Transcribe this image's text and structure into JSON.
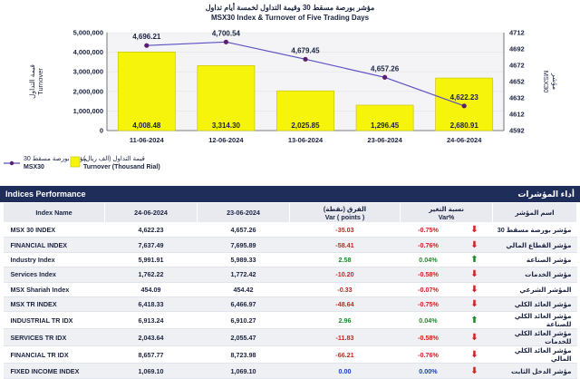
{
  "chart_data": {
    "type": "bar+line",
    "title_ar": "مؤشر بورصة مسقط 30 وقيمة التداول لخمسة أيام تداول",
    "title": "MSX30 Index & Turnover of Five Trading Days",
    "categories": [
      "11-06-2024",
      "12-06-2024",
      "13-06-2024",
      "23-06-2024",
      "24-06-2024"
    ],
    "series": [
      {
        "name": "Turnover (Thousand Rial)",
        "name_ar": "قيمة التداول (الف ريال)",
        "type": "bar",
        "axis": "left",
        "values": [
          4008.48,
          3314.3,
          2025.85,
          1296.45,
          2680.91
        ],
        "labels": [
          "4,008.48",
          "3,314.30",
          "2,025.85",
          "1,296.45",
          "2,680.91"
        ]
      },
      {
        "name": "MSX30",
        "name_ar": "مؤشر بورصة مسقط 30",
        "type": "line",
        "axis": "right",
        "values": [
          4696.21,
          4700.54,
          4679.45,
          4657.26,
          4622.23
        ],
        "labels": [
          "4,696.21",
          "4,700.54",
          "4,679.45",
          "4,657.26",
          "4,622.23"
        ]
      }
    ],
    "yleft": {
      "label": "Turnover",
      "label_ar": "قيمة التداول",
      "min": 0,
      "max": 5000000,
      "ticks": [
        "0",
        "1,000,000",
        "2,000,000",
        "3,000,000",
        "4,000,000",
        "5,000,000"
      ]
    },
    "yright": {
      "label": "MSX30",
      "label_ar": "مؤشر",
      "min": 4592,
      "max": 4712,
      "ticks": [
        "4592",
        "4612",
        "4632",
        "4652",
        "4672",
        "4692",
        "4712"
      ]
    },
    "colors": {
      "bar": "#f7f40c",
      "bar_edge": "#c9c400",
      "line": "#5a4fbf",
      "marker": "#5a1e6e"
    }
  },
  "legend": {
    "msx30_ar": "مؤشر بورصة مسقط 30",
    "msx30": "MSX30",
    "turnover_ar": "قيمة التداول (الف ريال)",
    "turnover": "Turnover (Thousand Rial)"
  },
  "table": {
    "title": "Indices Performance",
    "title_ar": "أداء المؤشرات",
    "headers": {
      "name": "Index Name",
      "d1": "24-06-2024",
      "d2": "23-06-2024",
      "var_ar": "الفرق (نقطة)",
      "var": "Var ( points )",
      "pct_ar": "نسبة التغير",
      "pct": "Var%",
      "name_ar": "اسم المؤشر"
    },
    "rows": [
      {
        "name": "MSX 30 INDEX",
        "d1": "4,622.23",
        "d2": "4,657.26",
        "var": "-35.03",
        "pct": "-0.75%",
        "dir": "down",
        "name_ar": "مؤشر بورصة مسقط 30"
      },
      {
        "name": "FINANCIAL INDEX",
        "d1": "7,637.49",
        "d2": "7,695.89",
        "var": "-58.41",
        "pct": "-0.76%",
        "dir": "down",
        "name_ar": "مؤشر القطاع المالي"
      },
      {
        "name": "Industry Index",
        "d1": "5,991.91",
        "d2": "5,989.33",
        "var": "2.58",
        "pct": "0.04%",
        "dir": "up",
        "name_ar": "مؤشر الصناعة"
      },
      {
        "name": "Services Index",
        "d1": "1,762.22",
        "d2": "1,772.42",
        "var": "-10.20",
        "pct": "-0.58%",
        "dir": "down",
        "name_ar": "مؤشر الخدمات"
      },
      {
        "name": "MSX Shariah Index",
        "d1": "454.09",
        "d2": "454.42",
        "var": "-0.33",
        "pct": "-0.07%",
        "dir": "down",
        "name_ar": "المؤشر الشرعي"
      },
      {
        "name": "MSX TR INDEX",
        "d1": "6,418.33",
        "d2": "6,466.97",
        "var": "-48.64",
        "pct": "-0.75%",
        "dir": "down",
        "name_ar": "مؤشر العائد الكلي"
      },
      {
        "name": "INDUSTRIAL TR IDX",
        "d1": "6,913.24",
        "d2": "6,910.27",
        "var": "2.96",
        "pct": "0.04%",
        "dir": "up",
        "name_ar": "مؤشر العائد الكلي للصناعة"
      },
      {
        "name": "SERVICES TR IDX",
        "d1": "2,043.64",
        "d2": "2,055.47",
        "var": "-11.83",
        "pct": "-0.58%",
        "dir": "down",
        "name_ar": "مؤشر العائد الكلي للخدمات"
      },
      {
        "name": "FINANCIAL TR IDX",
        "d1": "8,657.77",
        "d2": "8,723.98",
        "var": "-66.21",
        "pct": "-0.76%",
        "dir": "down",
        "name_ar": "مؤشر العائد الكلي المالي"
      },
      {
        "name": "FIXED INCOME INDEX",
        "d1": "1,069.10",
        "d2": "1,069.10",
        "var": "0.00",
        "pct": "0.00%",
        "dir": "down",
        "name_ar": "مؤشر الدخل الثابت"
      }
    ]
  }
}
